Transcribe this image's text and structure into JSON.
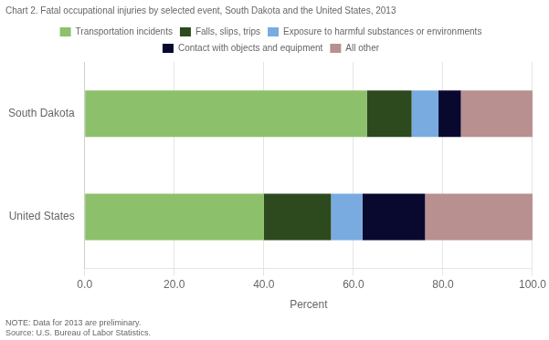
{
  "chart_data": {
    "type": "bar",
    "orientation": "horizontal",
    "stacked": true,
    "title": "Chart 2. Fatal occupational injuries by selected event, South Dakota and the United States, 2013",
    "categories": [
      "United States",
      "South Dakota"
    ],
    "series": [
      {
        "name": "Transportation incidents",
        "color": "#8dc06a",
        "values": [
          40.0,
          63.0
        ]
      },
      {
        "name": "Falls, slips, trips",
        "color": "#2d4a1e",
        "values": [
          15.0,
          10.0
        ]
      },
      {
        "name": "Exposure to harmful substances or environments",
        "color": "#7aabe0",
        "values": [
          7.0,
          6.0
        ]
      },
      {
        "name": "Contact with objects and equipment",
        "color": "#090930",
        "values": [
          14.0,
          5.0
        ]
      },
      {
        "name": "All other",
        "color": "#b89090",
        "values": [
          24.0,
          16.0
        ]
      }
    ],
    "xlabel": "Percent",
    "xlim": [
      0,
      100
    ],
    "xticks": [
      {
        "value": 0,
        "label": "0.0"
      },
      {
        "value": 20,
        "label": "20.0"
      },
      {
        "value": 40,
        "label": "40.0"
      },
      {
        "value": 60,
        "label": "60.0"
      },
      {
        "value": 80,
        "label": "80.0"
      },
      {
        "value": 100,
        "label": "100.0"
      }
    ],
    "grid": true,
    "legend": "top",
    "annotations": [
      "NOTE: Data for 2013 are preliminary.",
      "Source: U.S. Bureau of Labor Statistics."
    ]
  }
}
